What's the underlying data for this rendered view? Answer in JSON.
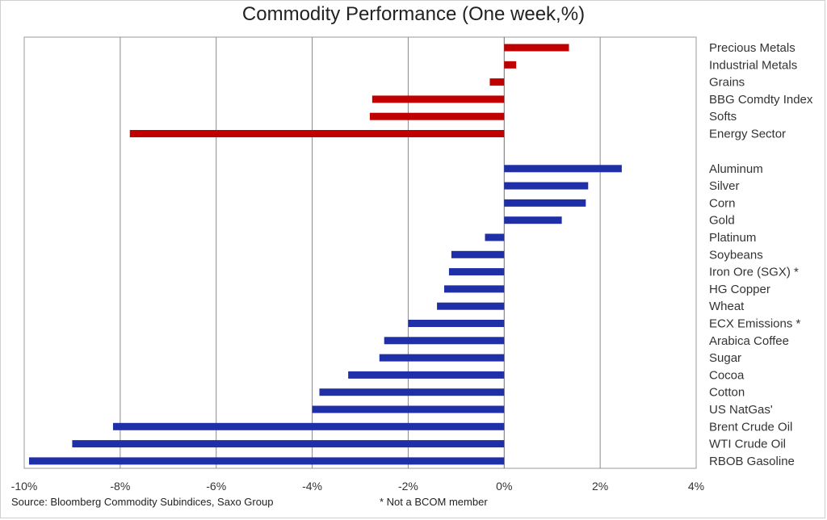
{
  "title": "Commodity Performance (One week,%)",
  "source": "Source: Bloomberg Commodity Subindices, Saxo Group",
  "note": "* Not a BCOM member",
  "colors": {
    "sector": "#c00000",
    "commodity": "#1f2fa8",
    "grid": "#8a8a8a"
  },
  "chart_data": {
    "type": "bar",
    "orientation": "horizontal",
    "xlim": [
      -10,
      4
    ],
    "xticks": [
      "-10%",
      "-8%",
      "-6%",
      "-4%",
      "-2%",
      "0%",
      "2%",
      "4%"
    ],
    "grid": true,
    "groups": [
      {
        "name": "sectors",
        "color": "#c00000",
        "categories": [
          "Precious Metals",
          "Industrial Metals",
          "Grains",
          "BBG Comdty Index",
          "Softs",
          "Energy Sector"
        ],
        "values": [
          1.35,
          0.25,
          -0.3,
          -2.75,
          -2.8,
          -7.8
        ]
      },
      {
        "name": "commodities",
        "color": "#1f2fa8",
        "categories": [
          "Aluminum",
          "Silver",
          "Corn",
          "Gold",
          "Platinum",
          "Soybeans",
          "Iron Ore (SGX) *",
          "HG Copper",
          "Wheat",
          "ECX Emissions *",
          "Arabica Coffee",
          "Sugar",
          "Cocoa",
          "Cotton",
          "US NatGas'",
          "Brent Crude Oil",
          "WTI Crude Oil",
          "RBOB Gasoline"
        ],
        "values": [
          2.45,
          1.75,
          1.7,
          1.2,
          -0.4,
          -1.1,
          -1.15,
          -1.25,
          -1.4,
          -2.0,
          -2.5,
          -2.6,
          -3.25,
          -3.85,
          -4.0,
          -8.15,
          -9.0,
          -9.9
        ]
      }
    ]
  }
}
